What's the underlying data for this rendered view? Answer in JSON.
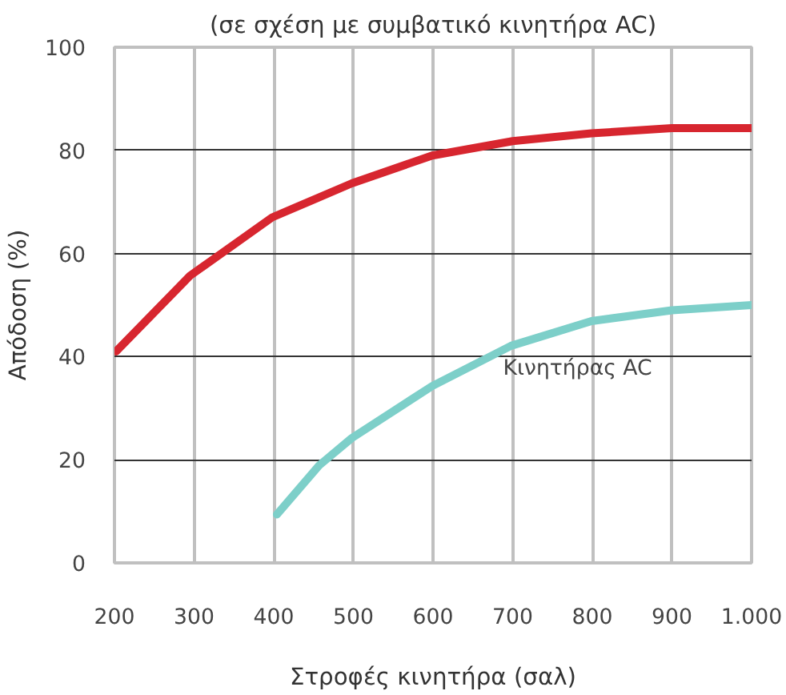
{
  "chart_data": {
    "type": "line",
    "title": "(σε σχέση με συμβατικό κινητήρα AC)",
    "xlabel": "Στροφές κινητήρα (σαλ)",
    "ylabel": "Απόδοση (%)",
    "xlim": [
      200,
      1000
    ],
    "ylim": [
      0,
      100
    ],
    "xticks": [
      200,
      300,
      400,
      500,
      600,
      700,
      800,
      900,
      {
        "value": 1000,
        "label": "1.000"
      }
    ],
    "yticks": [
      0,
      20,
      40,
      60,
      80,
      100
    ],
    "grid": true,
    "series": [
      {
        "color": "#d7262f",
        "x": [
          202,
          295,
          398,
          498,
          599,
          700,
          799,
          900,
          1000
        ],
        "values": [
          41,
          55.7,
          67,
          73.6,
          79,
          81.8,
          83.3,
          84.3,
          84.3
        ]
      },
      {
        "name": "Κινητήρας AC",
        "color": "#7dcfc9",
        "x": [
          404,
          457,
          498,
          599,
          698,
          799,
          900,
          1000
        ],
        "values": [
          9.4,
          18.9,
          24.2,
          34.3,
          42.1,
          46.9,
          49,
          50
        ]
      }
    ]
  }
}
